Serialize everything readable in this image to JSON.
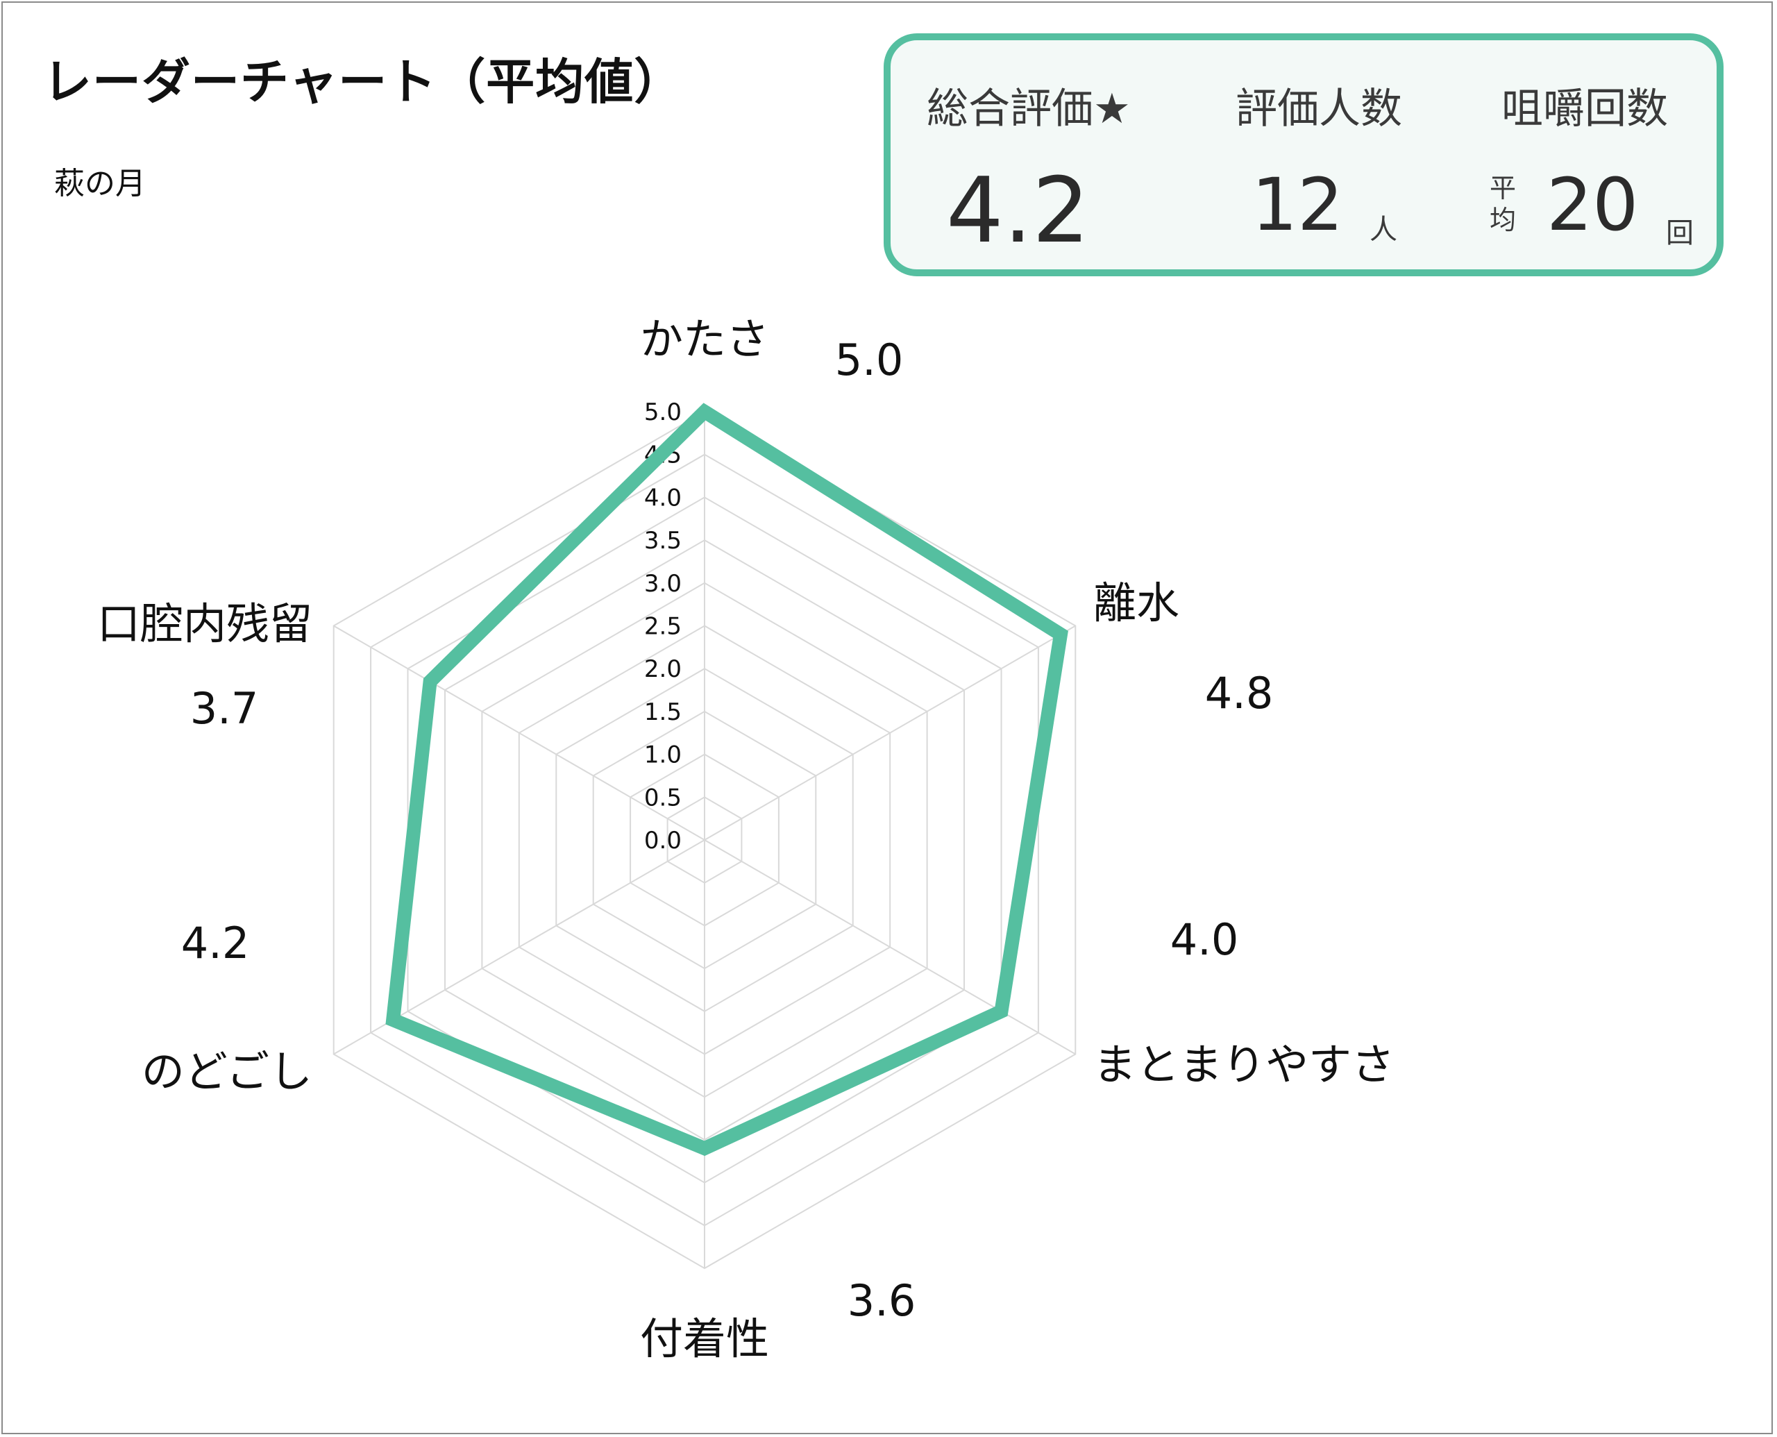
{
  "title": "レーダーチャート（平均値）",
  "subtitle": "萩の月",
  "summary": {
    "overall_label": "総合評価★",
    "overall_value": "4.2",
    "people_label": "評価人数",
    "people_value": "12",
    "people_unit": "人",
    "chew_label": "咀嚼回数",
    "chew_prefix": "平均",
    "chew_value": "20",
    "chew_unit": "回"
  },
  "colors": {
    "series": "#55bfa0",
    "grid": "#d9d9d9",
    "frame": "#8a8a8a"
  },
  "chart_data": {
    "type": "radar",
    "axes": [
      "かたさ",
      "離水",
      "まとまりやすさ",
      "付着性",
      "のどごし",
      "口腔内残留"
    ],
    "values": [
      5.0,
      4.8,
      4.0,
      3.6,
      4.2,
      3.7
    ],
    "value_labels": [
      "5.0",
      "4.8",
      "4.0",
      "3.6",
      "4.2",
      "3.7"
    ],
    "rlim": [
      0,
      5
    ],
    "ticks": [
      "0.0",
      "0.5",
      "1.0",
      "1.5",
      "2.0",
      "2.5",
      "3.0",
      "3.5",
      "4.0",
      "4.5",
      "5.0"
    ],
    "grid": true
  }
}
